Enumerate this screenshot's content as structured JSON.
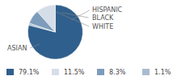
{
  "chart_data": {
    "type": "pie",
    "categories": [
      "ASIAN",
      "HISPANIC",
      "BLACK",
      "WHITE"
    ],
    "values": [
      79.1,
      11.5,
      8.3,
      1.1
    ],
    "value_labels": [
      "79.1%",
      "11.5%",
      "8.3%",
      "1.1%"
    ],
    "colors": [
      "#2f5f8c",
      "#d5dee8",
      "#7d9cbc",
      "#a9bccf"
    ]
  }
}
